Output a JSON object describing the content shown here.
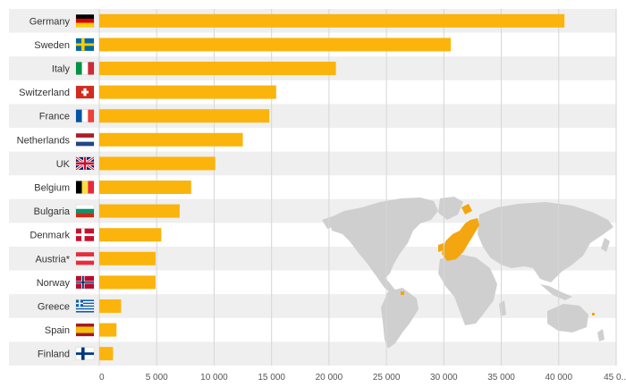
{
  "chart_data": {
    "type": "bar",
    "orientation": "horizontal",
    "categories": [
      "Germany",
      "Sweden",
      "Italy",
      "Switzerland",
      "France",
      "Netherlands",
      "UK",
      "Belgium",
      "Bulgaria",
      "Denmark",
      "Austria*",
      "Norway",
      "Greece",
      "Spain",
      "Finland"
    ],
    "values": [
      40500,
      30600,
      20600,
      15400,
      14800,
      12500,
      10100,
      8000,
      7000,
      5400,
      4900,
      4900,
      1900,
      1500,
      1200
    ],
    "flags": [
      "flag-germany-icon",
      "flag-sweden-icon",
      "flag-italy-icon",
      "flag-switzerland-icon",
      "flag-france-icon",
      "flag-netherlands-icon",
      "flag-uk-icon",
      "flag-belgium-icon",
      "flag-bulgaria-icon",
      "flag-denmark-icon",
      "flag-austria-icon",
      "flag-norway-icon",
      "flag-greece-icon",
      "flag-spain-icon",
      "flag-finland-icon"
    ],
    "xlim": [
      0,
      45000
    ],
    "xticks": [
      0,
      5000,
      10000,
      15000,
      20000,
      25000,
      30000,
      35000,
      40000,
      45000
    ],
    "xtick_labels": [
      "0",
      "5 000",
      "10 000",
      "15 000",
      "20 000",
      "25 000",
      "30 000",
      "35 000",
      "40 000",
      "45 0..."
    ],
    "grid": true,
    "title": "",
    "xlabel": "",
    "ylabel": "",
    "background_map": "world-map-europe-highlighted"
  },
  "colors": {
    "bar": "#FBB40B",
    "row_band": "#EFEFEF",
    "grid": "#D6D6D6",
    "map_land": "#CFCFCF",
    "map_highlight": "#F3A60F"
  }
}
